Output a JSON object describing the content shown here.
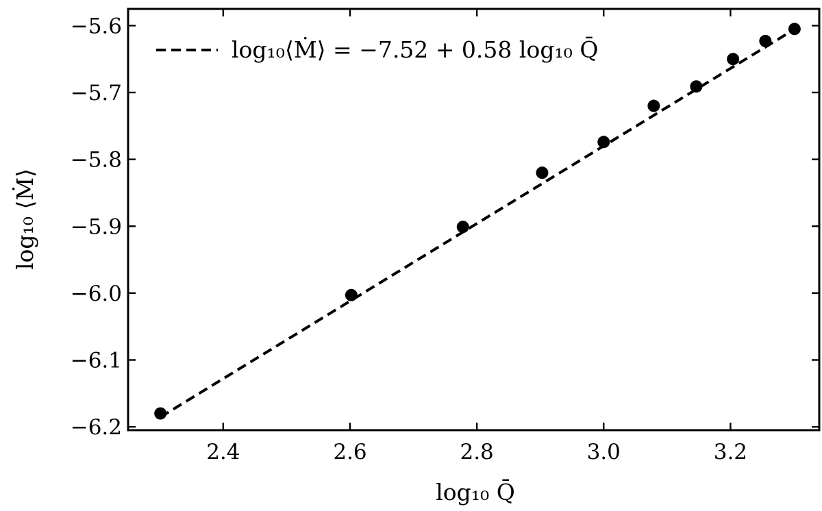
{
  "chart_data": {
    "type": "scatter",
    "xlabel": "log₁₀ Q̄",
    "ylabel": "log₁₀ ⟨Ṁ⟩",
    "xlim": [
      2.25,
      3.34
    ],
    "ylim": [
      -6.205,
      -5.575
    ],
    "x_ticks": [
      2.4,
      2.6,
      2.8,
      3.0,
      3.2
    ],
    "x_tick_labels": [
      "2.4",
      "2.6",
      "2.8",
      "3.0",
      "3.2"
    ],
    "y_ticks": [
      -5.6,
      -5.7,
      -5.8,
      -5.9,
      -6.0,
      -6.1,
      -6.2
    ],
    "y_tick_labels": [
      "−5.6",
      "−5.7",
      "−5.8",
      "−5.9",
      "−6.0",
      "−6.1",
      "−6.2"
    ],
    "grid": false,
    "legend_position": "top-left",
    "series": [
      {
        "kind": "points",
        "color": "#000000",
        "x": [
          2.301,
          2.602,
          2.778,
          2.903,
          3.0,
          3.079,
          3.146,
          3.204,
          3.255,
          3.301
        ],
        "y": [
          -6.18,
          -6.003,
          -5.901,
          -5.82,
          -5.774,
          -5.72,
          -5.691,
          -5.65,
          -5.623,
          -5.605
        ]
      },
      {
        "kind": "fit-line",
        "name": "log₁₀⟨Ṁ⟩ = −7.52 + 0.58 log₁₀ Q̄",
        "color": "#000000",
        "intercept": -7.52,
        "slope": 0.58,
        "x_range": [
          2.301,
          3.301
        ]
      }
    ]
  }
}
